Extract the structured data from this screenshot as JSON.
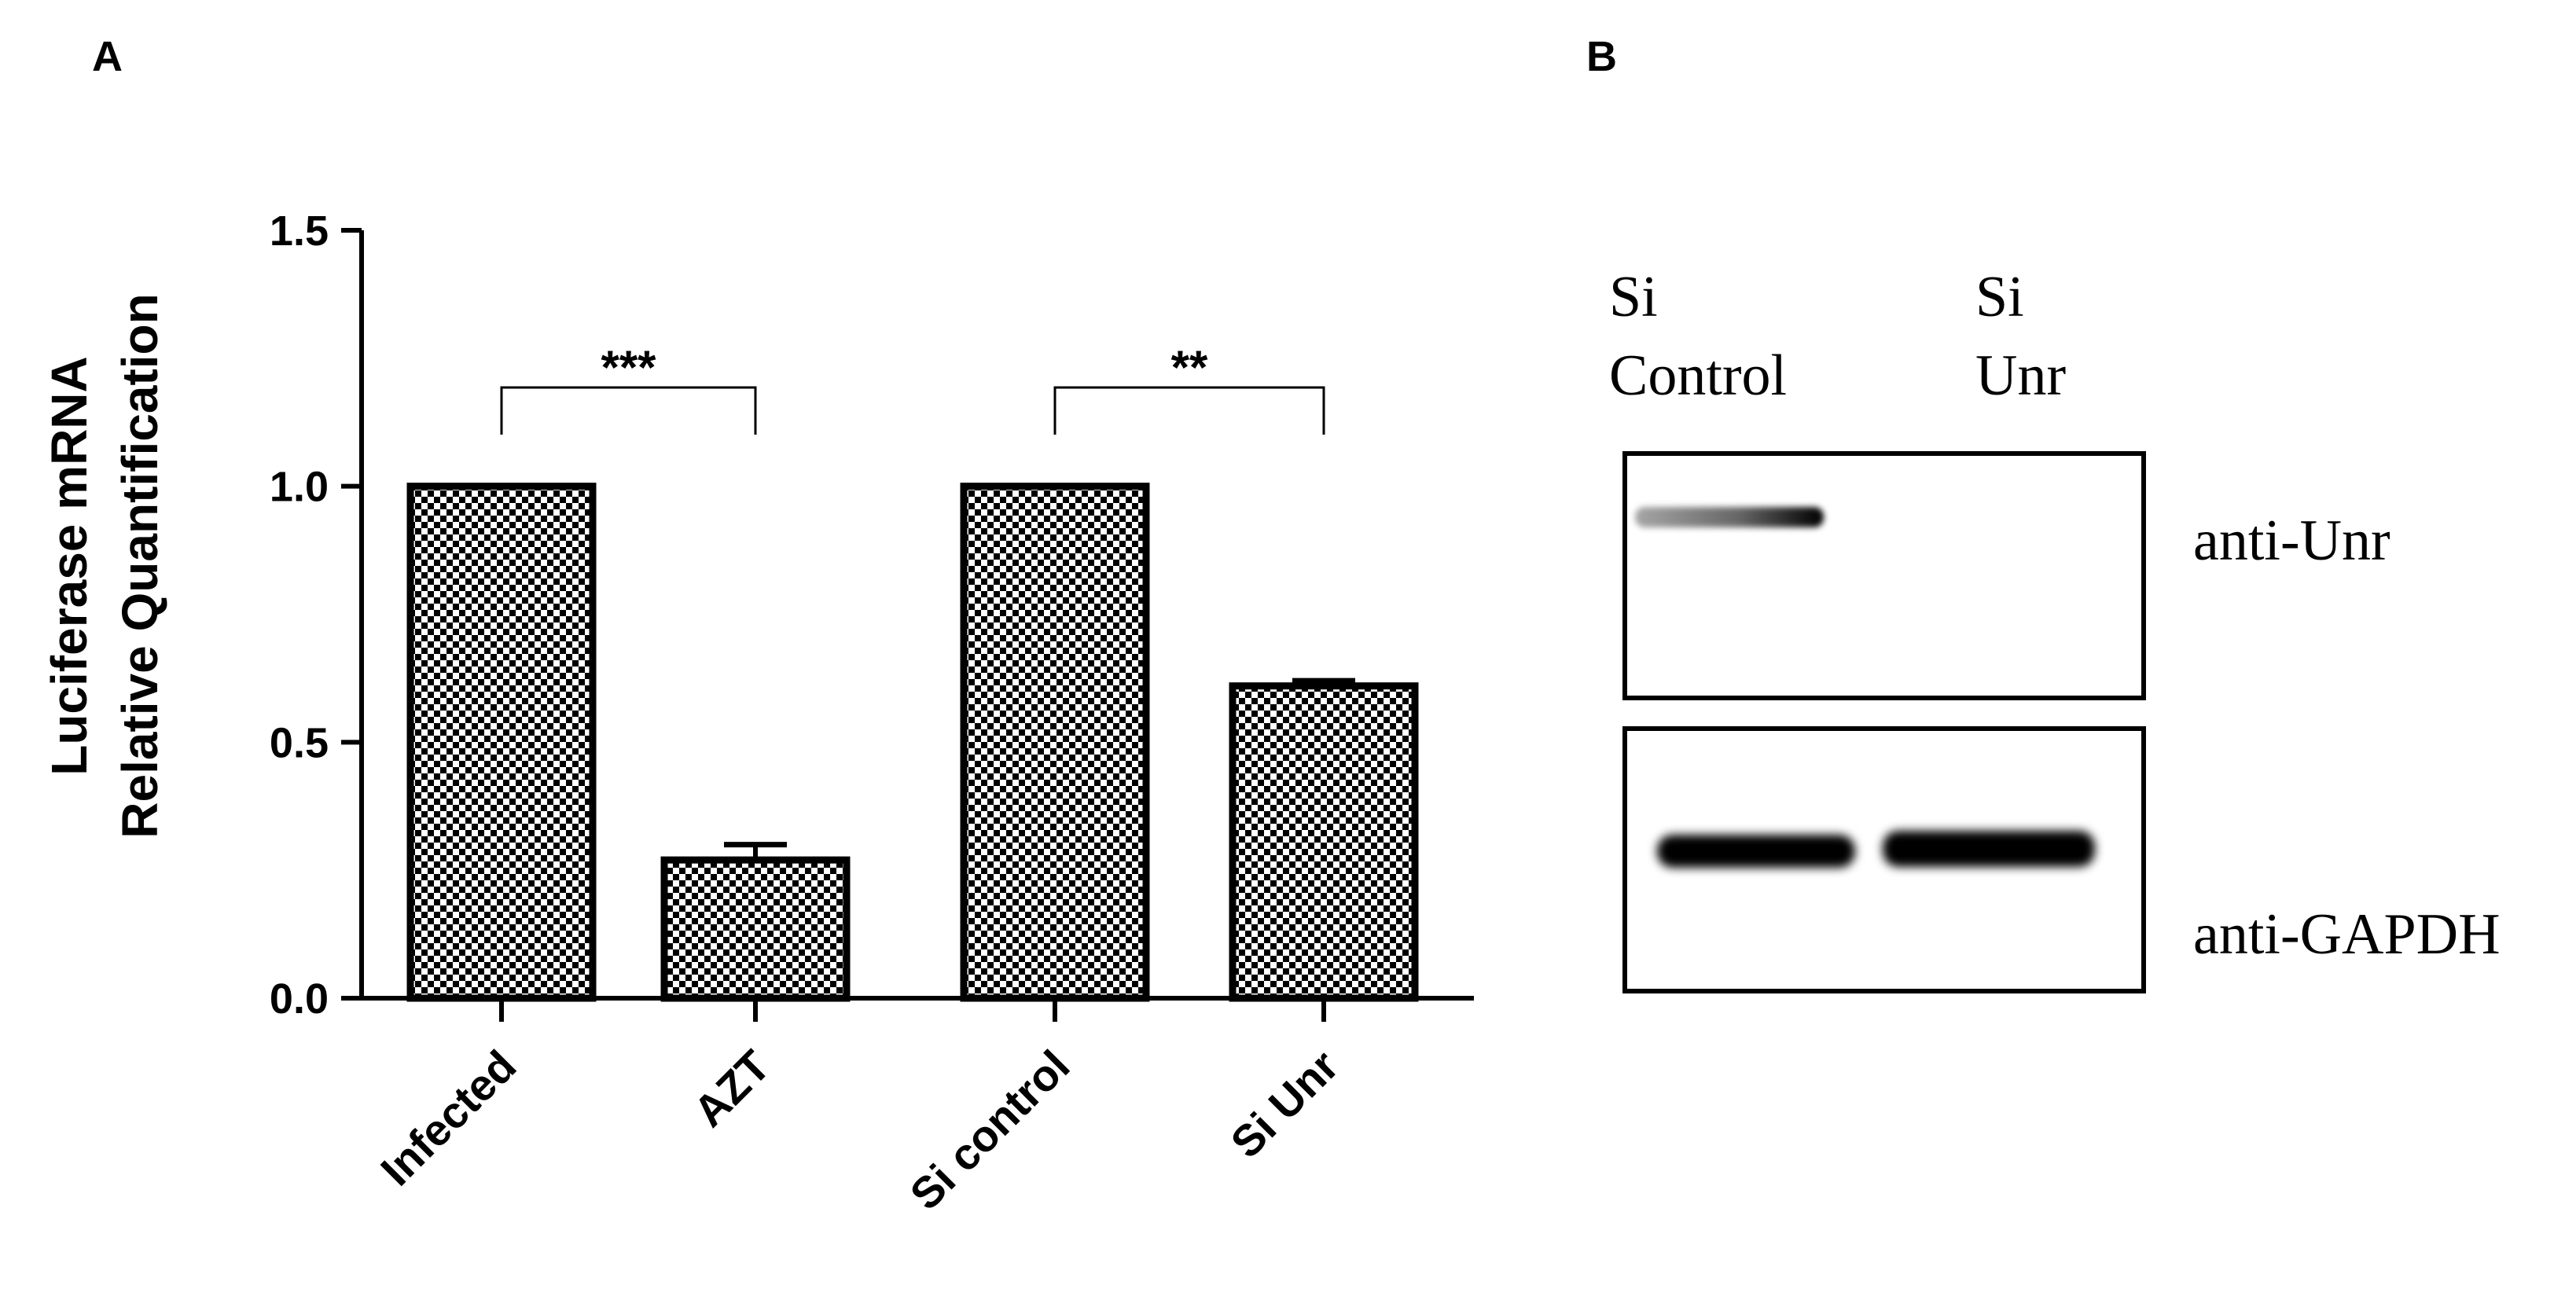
{
  "panels": {
    "a": "A",
    "b": "B"
  },
  "chart_data": {
    "type": "bar",
    "categories": [
      "Infected",
      "AZT",
      "Si control",
      "Si Unr"
    ],
    "values": [
      1.0,
      0.27,
      1.0,
      0.61
    ],
    "errors": [
      0.0,
      0.03,
      0.0,
      0.01
    ],
    "ylabel_line1": "Luciferase mRNA",
    "ylabel_line2": "Relative Quantification",
    "ylim": [
      0,
      1.5
    ],
    "yticks": [
      "0.0",
      "0.5",
      "1.0",
      "1.5"
    ],
    "significance": [
      {
        "from": 0,
        "to": 1,
        "label": "***"
      },
      {
        "from": 2,
        "to": 3,
        "label": "**"
      }
    ],
    "bar_pattern": "black-white checkerboard"
  },
  "blot": {
    "lanes": [
      {
        "line1": "Si",
        "line2": "Control"
      },
      {
        "line1": "Si",
        "line2": "Unr"
      }
    ],
    "rows": [
      {
        "label": "anti-Unr"
      },
      {
        "label": "anti-GAPDH"
      }
    ]
  }
}
